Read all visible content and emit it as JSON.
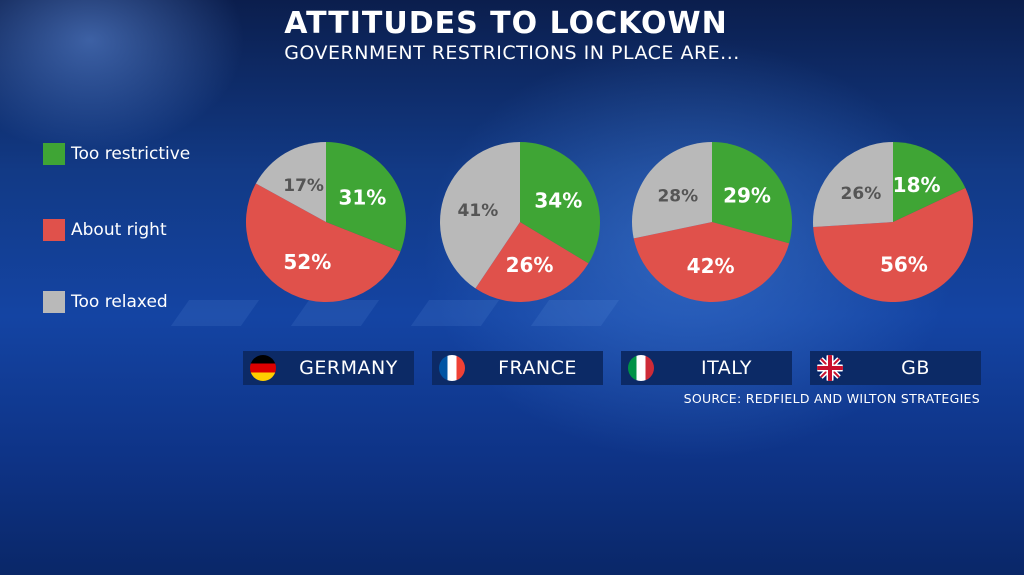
{
  "title": "ATTITUDES TO LOCKOWN",
  "subtitle": "GOVERNMENT RESTRICTIONS IN PLACE ARE...",
  "source": "SOURCE: REDFIELD AND WILTON STRATEGIES",
  "colors": {
    "too_restrictive": "#3fa535",
    "about_right": "#e0514b",
    "too_relaxed": "#b9b9b9"
  },
  "legend": [
    {
      "label": "Too restrictive",
      "color": "#3fa535"
    },
    {
      "label": "About right",
      "color": "#e0514b"
    },
    {
      "label": "Too relaxed",
      "color": "#b9b9b9"
    }
  ],
  "countries": [
    {
      "name": "GERMANY",
      "flag": "germany-flag-icon"
    },
    {
      "name": "FRANCE",
      "flag": "france-flag-icon"
    },
    {
      "name": "ITALY",
      "flag": "italy-flag-icon"
    },
    {
      "name": "GB",
      "flag": "uk-flag-icon"
    }
  ],
  "chart_data": {
    "type": "pie",
    "title": "ATTITUDES TO LOCKOWN",
    "subtitle": "GOVERNMENT RESTRICTIONS IN PLACE ARE...",
    "categories": [
      "Too restrictive",
      "About right",
      "Too relaxed"
    ],
    "series": [
      {
        "name": "GERMANY",
        "values": [
          31,
          52,
          17
        ],
        "labels": [
          "31%",
          "52%",
          "17%"
        ]
      },
      {
        "name": "FRANCE",
        "values": [
          34,
          26,
          41
        ],
        "labels": [
          "34%",
          "26%",
          "41%"
        ]
      },
      {
        "name": "ITALY",
        "values": [
          29,
          42,
          28
        ],
        "labels": [
          "29%",
          "42%",
          "28%"
        ]
      },
      {
        "name": "GB",
        "values": [
          18,
          56,
          26
        ],
        "labels": [
          "18%",
          "56%",
          "26%"
        ]
      }
    ],
    "legend_position": "left"
  }
}
